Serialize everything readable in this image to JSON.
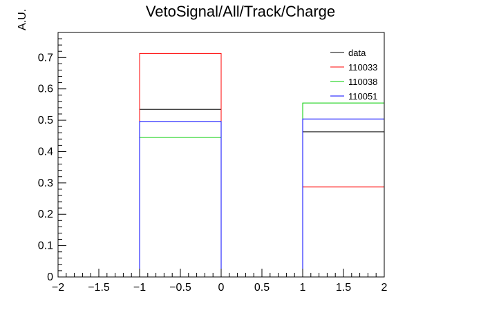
{
  "chart_data": {
    "type": "bar",
    "title": "VetoSignal/All/Track/Charge",
    "xlabel": "",
    "ylabel": "A.U.",
    "xlim": [
      -2,
      2
    ],
    "ylim": [
      0,
      0.78
    ],
    "x_ticks": [
      -2,
      -1.5,
      -1,
      -0.5,
      0,
      0.5,
      1,
      1.5,
      2
    ],
    "x_tick_labels": [
      "−2",
      "−1.5",
      "−1",
      "−0.5",
      "0",
      "0.5",
      "1",
      "1.5",
      "2"
    ],
    "y_ticks": [
      0,
      0.1,
      0.2,
      0.3,
      0.4,
      0.5,
      0.6,
      0.7
    ],
    "y_tick_labels": [
      "0",
      "0.1",
      "0.2",
      "0.3",
      "0.4",
      "0.5",
      "0.6",
      "0.7"
    ],
    "bin_edges": [
      -2,
      -1,
      0,
      1,
      2
    ],
    "grid": false,
    "legend_position": "top-right",
    "series": [
      {
        "name": "data",
        "color": "#000000",
        "values": [
          0,
          0.535,
          0,
          0.463
        ]
      },
      {
        "name": "110033",
        "color": "#ff0000",
        "values": [
          0,
          0.713,
          0,
          0.287
        ]
      },
      {
        "name": "110038",
        "color": "#00cc00",
        "values": [
          0,
          0.445,
          0,
          0.555
        ]
      },
      {
        "name": "110051",
        "color": "#0000ff",
        "values": [
          0,
          0.496,
          0,
          0.504
        ]
      }
    ]
  }
}
